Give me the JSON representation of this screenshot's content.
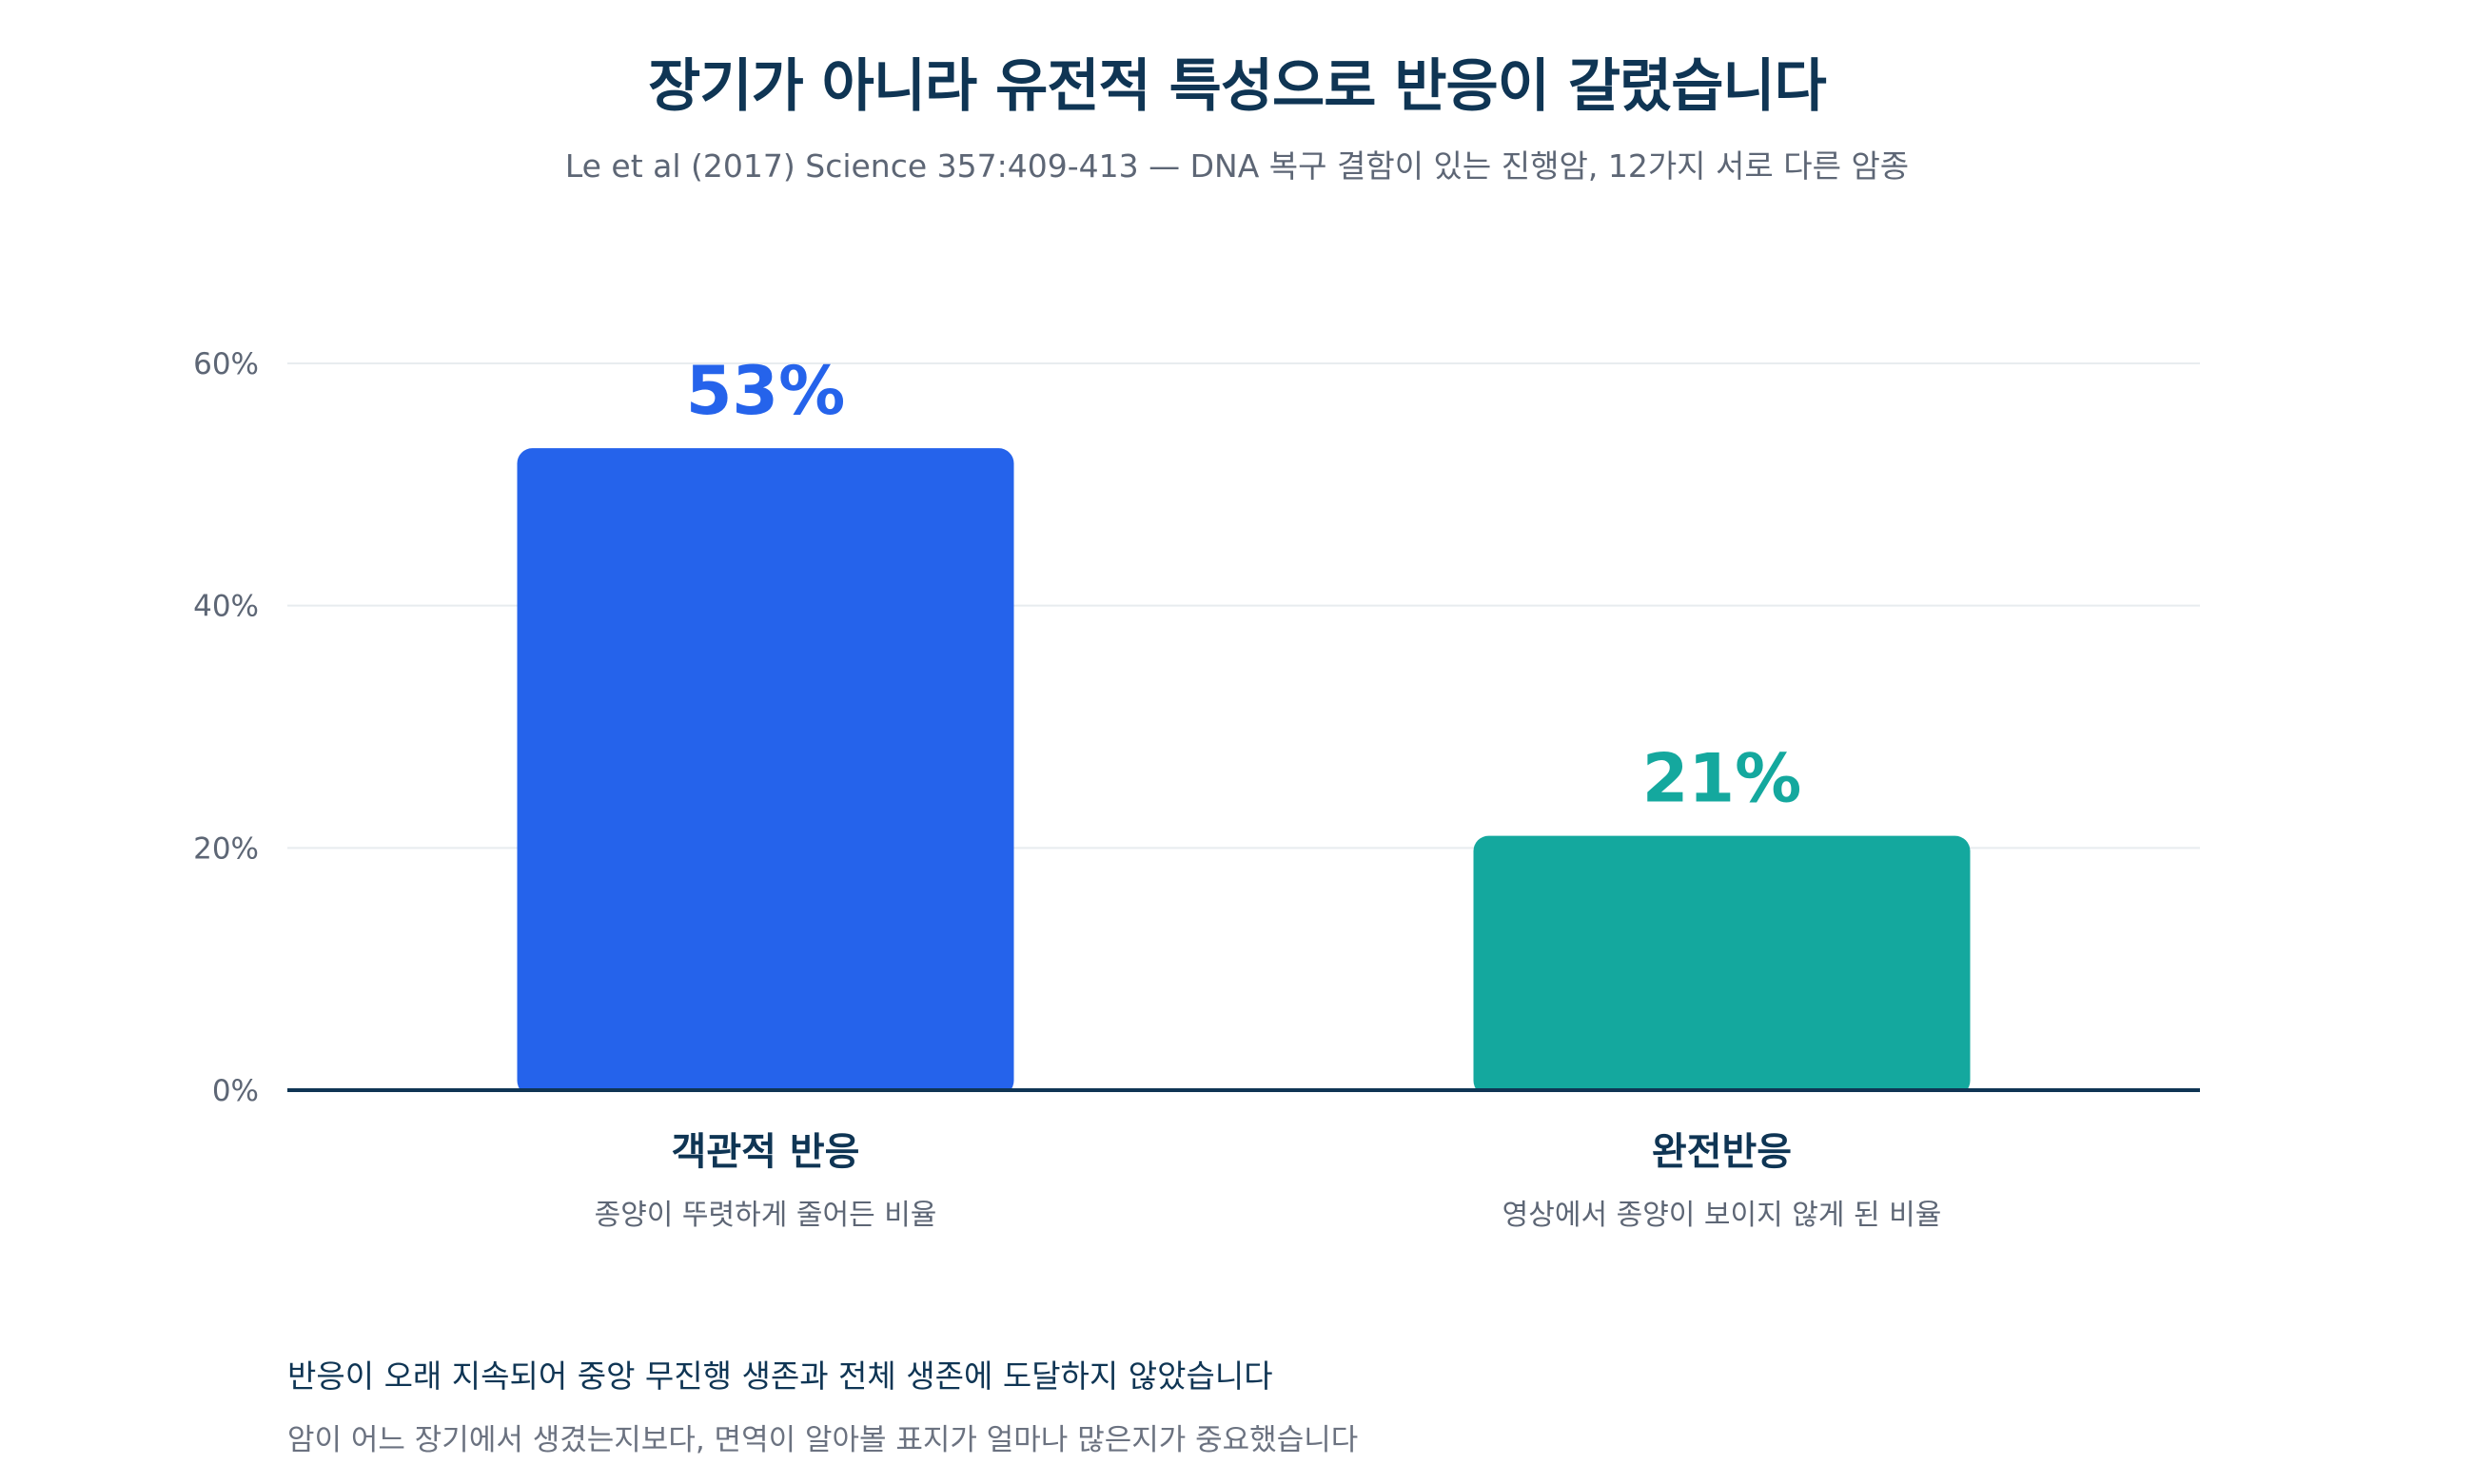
{
  "title": "장기가 아니라 유전적 특성으로 반응이 갈렸습니다",
  "subtitle": "Le et al (2017) Science 357:409-413 — DNA 복구 결함이 있는 진행암, 12가지 서로 다른 암종",
  "chart_data": {
    "type": "bar",
    "categories": [
      "객관적 반응",
      "완전반응"
    ],
    "category_descriptions": [
      "종양이 뚜렷하게 줄어든 비율",
      "영상에서 종양이 보이지 않게 된 비율"
    ],
    "values": [
      53,
      21
    ],
    "value_labels": [
      "53%",
      "21%"
    ],
    "colors": [
      "#2563eb",
      "#14a89e"
    ],
    "ylim": [
      0,
      60
    ],
    "y_ticks": [
      0,
      20,
      40,
      60
    ],
    "y_tick_labels": [
      "0%",
      "20%",
      "40%",
      "60%"
    ],
    "grid": true,
    "legend": "none"
  },
  "notes": {
    "main": "반응이 오래 지속되어 중앙 무진행 생존과 전체 생존에 도달하지 않았습니다",
    "sub": "암이 어느 장기에서 생겼는지보다, 면역이 알아볼 표지가 얼마나 많은지가 중요했습니다"
  },
  "colors": {
    "title": "#0f3554",
    "axis": "#0f3554",
    "grid": "#e8ecef",
    "tick": "#5d6675"
  }
}
